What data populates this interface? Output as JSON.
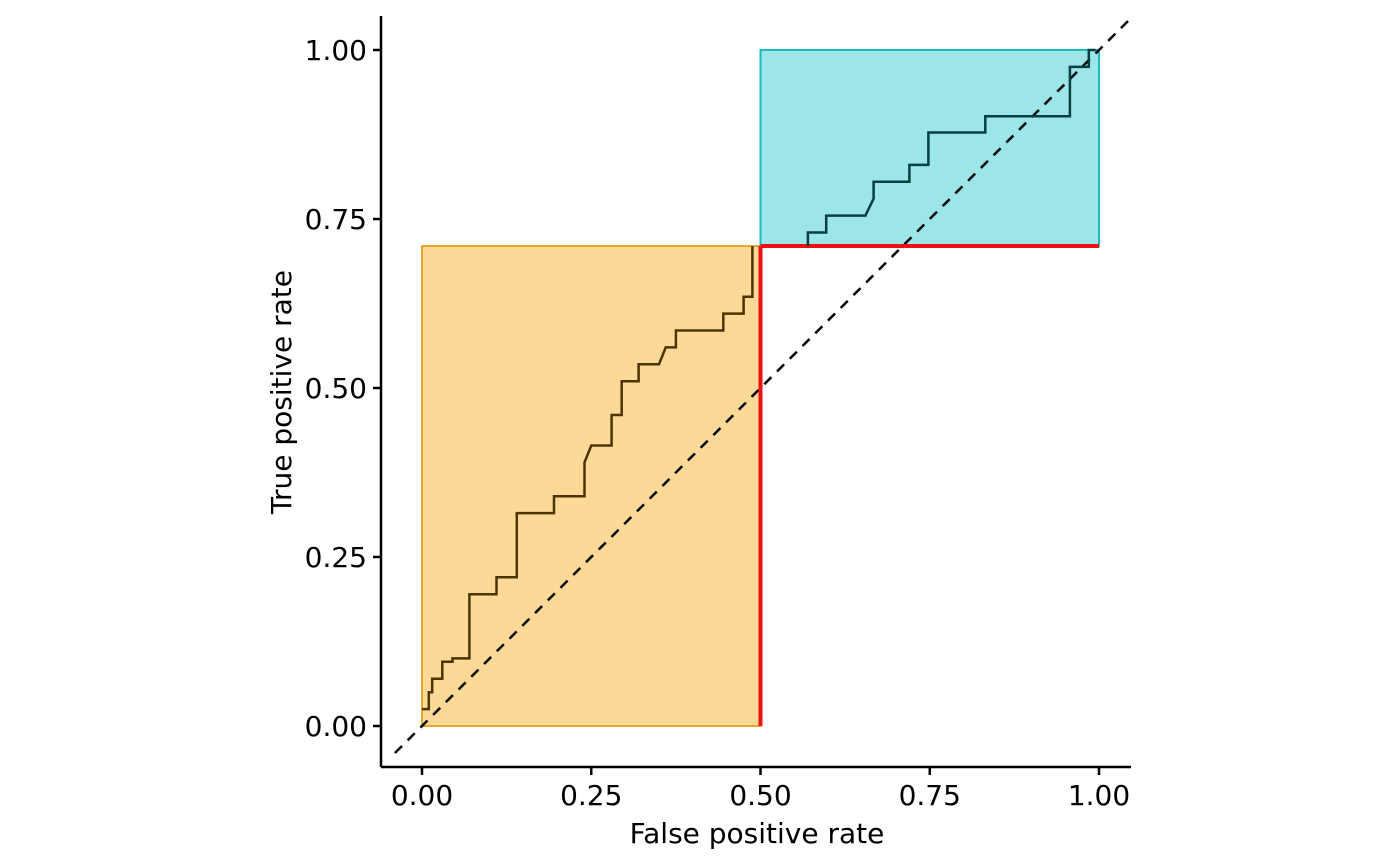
{
  "chart_data": {
    "type": "line",
    "title": "",
    "xlabel": "False positive rate",
    "ylabel": "True positive rate",
    "xlim": [
      -0.06,
      1.05
    ],
    "ylim": [
      -0.06,
      1.05
    ],
    "x_ticks": [
      0,
      0.25,
      0.5,
      0.75,
      1
    ],
    "y_ticks": [
      0,
      0.25,
      0.5,
      0.75,
      1
    ],
    "x_tick_labels": [
      "0.00",
      "0.25",
      "0.50",
      "0.75",
      "1.00"
    ],
    "y_tick_labels": [
      "0.00",
      "0.25",
      "0.50",
      "0.75",
      "1.00"
    ],
    "grid": false,
    "legend": "none",
    "reference_line": {
      "x": [
        0,
        1
      ],
      "y": [
        0,
        1
      ],
      "style": "dashed",
      "color": "#000000"
    },
    "regions": [
      {
        "x": [
          0,
          0.5
        ],
        "y": [
          0,
          0.71
        ],
        "fill": "#fcd997",
        "stroke": "#e8a82a"
      },
      {
        "x": [
          0.5,
          1
        ],
        "y": [
          0.71,
          1
        ],
        "fill": "#9ce5e8",
        "stroke": "#1bbcc1"
      }
    ],
    "threshold": {
      "x": 0.5,
      "y": 0.71,
      "color": "#ee1111"
    },
    "series": [
      {
        "color": "#4d3300",
        "x": [
          0,
          0.01,
          0.01,
          0.015,
          0.015,
          0.03,
          0.03,
          0.045,
          0.045,
          0.07,
          0.07,
          0.11,
          0.11,
          0.14,
          0.14,
          0.195,
          0.195,
          0.24,
          0.24,
          0.25,
          0.28,
          0.28,
          0.295,
          0.295,
          0.32,
          0.32,
          0.35,
          0.36,
          0.375,
          0.375,
          0.445,
          0.445,
          0.475,
          0.475,
          0.488,
          0.488
        ],
        "y": [
          0.025,
          0.025,
          0.05,
          0.05,
          0.07,
          0.07,
          0.095,
          0.095,
          0.1,
          0.1,
          0.195,
          0.195,
          0.22,
          0.22,
          0.315,
          0.315,
          0.34,
          0.34,
          0.39,
          0.415,
          0.415,
          0.46,
          0.46,
          0.51,
          0.51,
          0.535,
          0.535,
          0.56,
          0.56,
          0.585,
          0.585,
          0.61,
          0.61,
          0.635,
          0.635,
          0.71
        ]
      },
      {
        "color": "#053f3f",
        "x": [
          0.57,
          0.57,
          0.597,
          0.597,
          0.655,
          0.667,
          0.667,
          0.72,
          0.72,
          0.748,
          0.748,
          0.832,
          0.832,
          0.957,
          0.957,
          0.985,
          0.985,
          0.995
        ],
        "y": [
          0.71,
          0.73,
          0.73,
          0.755,
          0.755,
          0.78,
          0.805,
          0.805,
          0.83,
          0.83,
          0.878,
          0.878,
          0.902,
          0.902,
          0.975,
          0.975,
          1.0,
          1.0
        ]
      }
    ]
  }
}
